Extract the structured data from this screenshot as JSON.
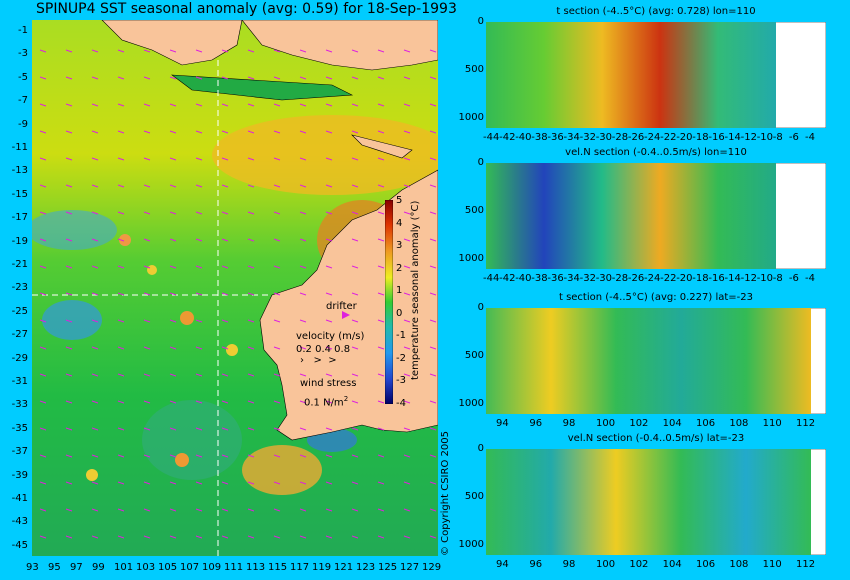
{
  "title": "SPINUP4 SST seasonal anomaly (avg: 0.59) for 18-Sep-1993",
  "map": {
    "lat_labels": [
      "-1",
      "-3",
      "-5",
      "-7",
      "-9",
      "-11",
      "-13",
      "-15",
      "-17",
      "-19",
      "-21",
      "-23",
      "-25",
      "-27",
      "-29",
      "-31",
      "-33",
      "-35",
      "-37",
      "-39",
      "-41",
      "-43",
      "-45"
    ],
    "lon_labels": [
      "93",
      "95",
      "97",
      "99",
      "101",
      "103",
      "105",
      "107",
      "109",
      "111",
      "113",
      "115",
      "117",
      "119",
      "121",
      "123",
      "125",
      "127",
      "129"
    ],
    "drifter_label": "drifter",
    "velocity_label": "velocity (m/s)",
    "velocity_scale": "0.2 0.4 0.8",
    "wind_label": "wind stress",
    "wind_scale": "0.1 N/m",
    "wind_scale_exp": "2",
    "colorbar_label": "temperature seasonal anomaly (°C)",
    "colorbar_ticks": [
      "5",
      "4",
      "3",
      "2",
      "1",
      "0",
      "-1",
      "-2",
      "-3",
      "-4"
    ],
    "colors": {
      "land": "#f9c49a",
      "ocean_cool": "#22bb33",
      "ocean_warm": "#eecc11",
      "arrow": "#dd22dd",
      "background": "#00ccff"
    }
  },
  "copyright": "© Copyright CSIRO 2005",
  "sections": [
    {
      "title": "t section (-4..5°C) (avg: 0.728) lon=110",
      "y_ticks": [
        "0",
        "500",
        "1000"
      ],
      "x_ticks": [
        "-44",
        "-42",
        "-40",
        "-38",
        "-36",
        "-34",
        "-32",
        "-30",
        "-28",
        "-26",
        "-24",
        "-22",
        "-20",
        "-18",
        "-16",
        "-14",
        "-12",
        "-10",
        "-8",
        "-6",
        "-4"
      ]
    },
    {
      "title": "vel.N section (-0.4..0.5m/s) lon=110",
      "y_ticks": [
        "0",
        "500",
        "1000"
      ],
      "x_ticks": [
        "-44",
        "-42",
        "-40",
        "-38",
        "-36",
        "-34",
        "-32",
        "-30",
        "-28",
        "-26",
        "-24",
        "-22",
        "-20",
        "-18",
        "-16",
        "-14",
        "-12",
        "-10",
        "-8",
        "-6",
        "-4"
      ]
    },
    {
      "title": "t section (-4..5°C) (avg: 0.227) lat=-23",
      "y_ticks": [
        "0",
        "500",
        "1000"
      ],
      "x_ticks": [
        "94",
        "96",
        "98",
        "100",
        "102",
        "104",
        "106",
        "108",
        "110",
        "112"
      ]
    },
    {
      "title": "vel.N section (-0.4..0.5m/s) lat=-23",
      "y_ticks": [
        "0",
        "500",
        "1000"
      ],
      "x_ticks": [
        "94",
        "96",
        "98",
        "100",
        "102",
        "104",
        "106",
        "108",
        "110",
        "112"
      ]
    }
  ],
  "chart_data": [
    {
      "type": "heatmap",
      "title": "SPINUP4 SST seasonal anomaly (avg: 0.59) for 18-Sep-1993",
      "xlim": [
        93,
        130
      ],
      "ylim": [
        -45,
        0
      ],
      "colorbar_range": [
        -4,
        5
      ],
      "colorbar_label": "temperature seasonal anomaly (°C)",
      "avg": 0.59
    },
    {
      "type": "heatmap",
      "title": "t section (-4..5°C) (avg: 0.728) lon=110",
      "xlim": [
        -45,
        -3
      ],
      "ylim": [
        1000,
        0
      ],
      "avg": 0.728
    },
    {
      "type": "heatmap",
      "title": "vel.N section (-0.4..0.5m/s) lon=110",
      "xlim": [
        -45,
        -3
      ],
      "ylim": [
        1000,
        0
      ]
    },
    {
      "type": "heatmap",
      "title": "t section (-4..5°C) (avg: 0.227) lat=-23",
      "xlim": [
        93,
        114
      ],
      "ylim": [
        1000,
        0
      ],
      "avg": 0.227
    },
    {
      "type": "heatmap",
      "title": "vel.N section (-0.4..0.5m/s) lat=-23",
      "xlim": [
        93,
        114
      ],
      "ylim": [
        1000,
        0
      ]
    }
  ]
}
